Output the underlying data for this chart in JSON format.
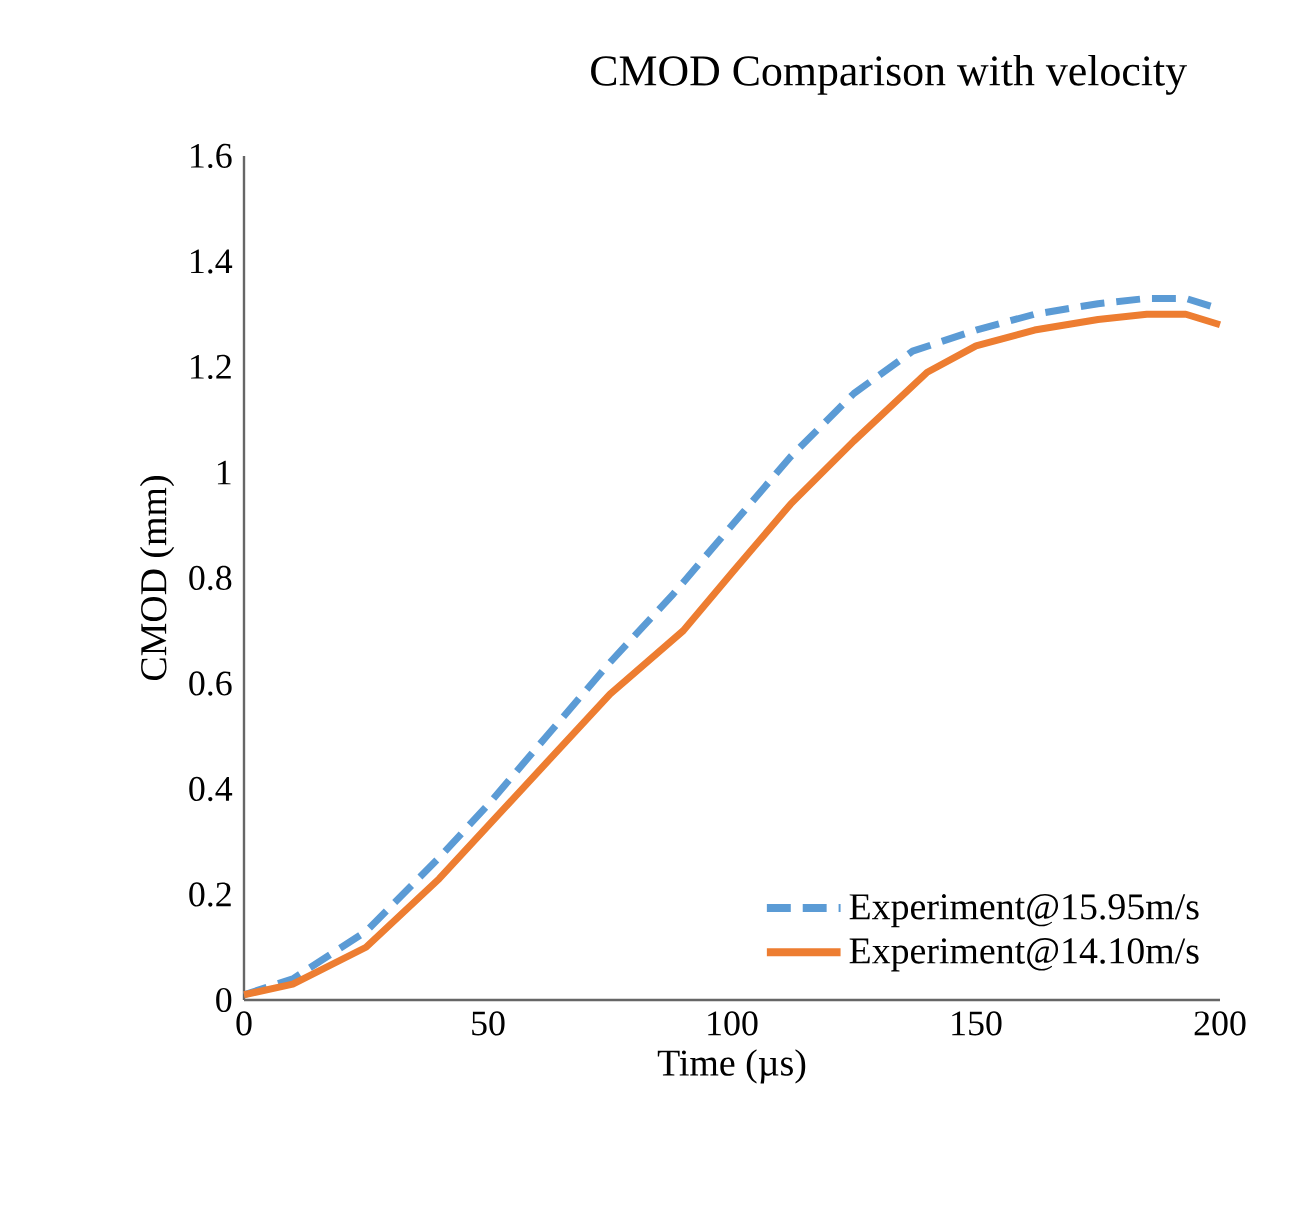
{
  "chart_data": {
    "type": "line",
    "title": "CMOD Comparison  with velocity",
    "xlabel": "Time (µs)",
    "ylabel": "CMOD (mm)",
    "xlim": [
      0,
      200
    ],
    "xticks": [
      0,
      50,
      100,
      150,
      200
    ],
    "ylim": [
      0,
      1.6
    ],
    "yticks": [
      0,
      0.2,
      0.4,
      0.6,
      0.8,
      1,
      1.2,
      1.4,
      1.6
    ],
    "legend": "bottom right",
    "grid": false,
    "marker": "none",
    "series": [
      {
        "name": "Experiment@15.95m/s",
        "color": "#5b9bd5",
        "line_style": "dashed",
        "x": [
          0,
          10,
          25,
          40,
          50,
          62,
          75,
          88,
          100,
          112,
          125,
          137,
          150,
          162,
          175,
          185,
          193,
          200
        ],
        "values": [
          0.01,
          0.04,
          0.13,
          0.27,
          0.37,
          0.5,
          0.64,
          0.77,
          0.9,
          1.03,
          1.15,
          1.23,
          1.27,
          1.3,
          1.32,
          1.33,
          1.33,
          1.31
        ]
      },
      {
        "name": "Experiment@14.10m/s",
        "color": "#ed7d31",
        "line_style": "solid",
        "x": [
          0,
          10,
          25,
          40,
          50,
          62,
          75,
          90,
          100,
          112,
          125,
          140,
          150,
          162,
          175,
          185,
          193,
          200
        ],
        "values": [
          0.01,
          0.03,
          0.1,
          0.23,
          0.33,
          0.45,
          0.58,
          0.7,
          0.81,
          0.94,
          1.06,
          1.19,
          1.24,
          1.27,
          1.29,
          1.3,
          1.3,
          1.28
        ]
      }
    ]
  }
}
